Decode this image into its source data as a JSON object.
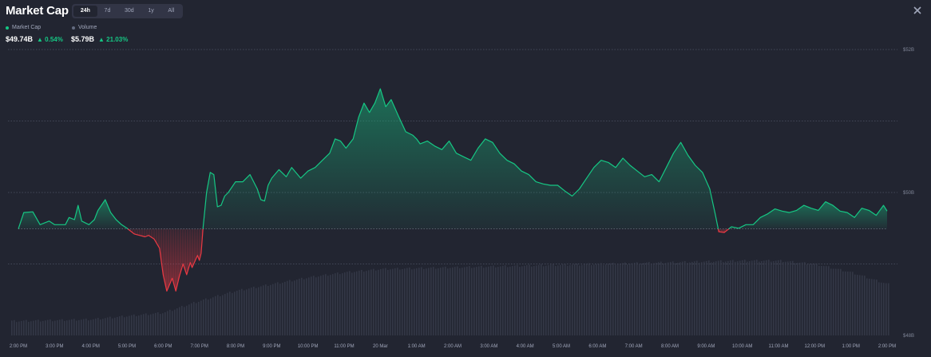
{
  "header": {
    "title": "Market Cap",
    "tabs": [
      {
        "label": "24h",
        "active": true
      },
      {
        "label": "7d",
        "active": false
      },
      {
        "label": "30d",
        "active": false
      },
      {
        "label": "1y",
        "active": false
      },
      {
        "label": "All",
        "active": false
      }
    ],
    "close_icon": "close-icon"
  },
  "legend": {
    "market_cap": {
      "label": "Market Cap",
      "value": "$49.74B",
      "change": "▲ 0.54%",
      "color": "#16c784"
    },
    "volume": {
      "label": "Volume",
      "value": "$5.79B",
      "change": "▲ 21.03%",
      "color": "#646b80"
    }
  },
  "colors": {
    "up": "#16c784",
    "down": "#ea3943",
    "background": "#222531",
    "volume_bar": "#393d4e",
    "grid": "#646b80"
  },
  "chart_data": {
    "type": "area",
    "baseline": 49.49,
    "ylim": [
      48,
      52
    ],
    "yticks": [
      52,
      50,
      48
    ],
    "ytick_labels": [
      "$52B",
      "$50B",
      "$48B"
    ],
    "grid": true,
    "xtick_labels": [
      "2:00 PM",
      "3:00 PM",
      "4:00 PM",
      "5:00 PM",
      "6:00 PM",
      "7:00 PM",
      "8:00 PM",
      "9:00 PM",
      "10:00 PM",
      "11:00 PM",
      "20 Mar",
      "1:00 AM",
      "2:00 AM",
      "3:00 AM",
      "4:00 AM",
      "5:00 AM",
      "6:00 AM",
      "7:00 AM",
      "8:00 AM",
      "9:00 AM",
      "10:00 AM",
      "11:00 AM",
      "12:00 PM",
      "1:00 PM",
      "2:00 PM"
    ],
    "x_range": [
      0,
      24
    ],
    "series": [
      {
        "kind": "market_cap",
        "points": [
          [
            0.0,
            49.49
          ],
          [
            0.15,
            49.72
          ],
          [
            0.4,
            49.73
          ],
          [
            0.6,
            49.55
          ],
          [
            0.85,
            49.6
          ],
          [
            1.0,
            49.55
          ],
          [
            1.3,
            49.55
          ],
          [
            1.4,
            49.65
          ],
          [
            1.55,
            49.62
          ],
          [
            1.65,
            49.82
          ],
          [
            1.75,
            49.6
          ],
          [
            1.95,
            49.55
          ],
          [
            2.1,
            49.62
          ],
          [
            2.2,
            49.75
          ],
          [
            2.4,
            49.9
          ],
          [
            2.55,
            49.72
          ],
          [
            2.7,
            49.62
          ],
          [
            2.85,
            49.55
          ],
          [
            3.0,
            49.5
          ],
          [
            3.2,
            49.42
          ],
          [
            3.5,
            49.38
          ],
          [
            3.6,
            49.4
          ],
          [
            3.75,
            49.35
          ],
          [
            3.9,
            49.22
          ],
          [
            4.0,
            48.85
          ],
          [
            4.1,
            48.62
          ],
          [
            4.25,
            48.8
          ],
          [
            4.35,
            48.62
          ],
          [
            4.45,
            48.83
          ],
          [
            4.55,
            49.0
          ],
          [
            4.65,
            48.85
          ],
          [
            4.75,
            49.02
          ],
          [
            4.8,
            48.95
          ],
          [
            4.95,
            49.12
          ],
          [
            5.0,
            49.05
          ],
          [
            5.05,
            49.15
          ],
          [
            5.1,
            49.49
          ],
          [
            5.2,
            50.0
          ],
          [
            5.3,
            50.28
          ],
          [
            5.4,
            50.25
          ],
          [
            5.5,
            49.8
          ],
          [
            5.6,
            49.82
          ],
          [
            5.7,
            49.95
          ],
          [
            5.8,
            50.0
          ],
          [
            6.0,
            50.15
          ],
          [
            6.2,
            50.15
          ],
          [
            6.4,
            50.25
          ],
          [
            6.6,
            50.05
          ],
          [
            6.7,
            49.9
          ],
          [
            6.8,
            49.88
          ],
          [
            6.9,
            50.1
          ],
          [
            7.0,
            50.2
          ],
          [
            7.2,
            50.32
          ],
          [
            7.4,
            50.22
          ],
          [
            7.55,
            50.35
          ],
          [
            7.8,
            50.2
          ],
          [
            8.0,
            50.3
          ],
          [
            8.2,
            50.35
          ],
          [
            8.4,
            50.45
          ],
          [
            8.6,
            50.55
          ],
          [
            8.75,
            50.75
          ],
          [
            8.9,
            50.72
          ],
          [
            9.05,
            50.62
          ],
          [
            9.25,
            50.75
          ],
          [
            9.4,
            51.05
          ],
          [
            9.55,
            51.25
          ],
          [
            9.7,
            51.12
          ],
          [
            9.85,
            51.25
          ],
          [
            10.0,
            51.45
          ],
          [
            10.15,
            51.2
          ],
          [
            10.3,
            51.3
          ],
          [
            10.5,
            51.07
          ],
          [
            10.7,
            50.85
          ],
          [
            10.9,
            50.8
          ],
          [
            11.0,
            50.75
          ],
          [
            11.1,
            50.68
          ],
          [
            11.3,
            50.72
          ],
          [
            11.5,
            50.65
          ],
          [
            11.7,
            50.6
          ],
          [
            11.9,
            50.72
          ],
          [
            12.1,
            50.55
          ],
          [
            12.3,
            50.5
          ],
          [
            12.5,
            50.45
          ],
          [
            12.7,
            50.62
          ],
          [
            12.9,
            50.75
          ],
          [
            13.1,
            50.7
          ],
          [
            13.3,
            50.55
          ],
          [
            13.5,
            50.45
          ],
          [
            13.7,
            50.4
          ],
          [
            13.9,
            50.3
          ],
          [
            14.1,
            50.25
          ],
          [
            14.3,
            50.15
          ],
          [
            14.5,
            50.12
          ],
          [
            14.7,
            50.1
          ],
          [
            14.9,
            50.1
          ],
          [
            15.1,
            50.02
          ],
          [
            15.3,
            49.95
          ],
          [
            15.5,
            50.05
          ],
          [
            15.7,
            50.2
          ],
          [
            15.9,
            50.35
          ],
          [
            16.1,
            50.45
          ],
          [
            16.3,
            50.42
          ],
          [
            16.5,
            50.35
          ],
          [
            16.7,
            50.48
          ],
          [
            16.9,
            50.38
          ],
          [
            17.1,
            50.3
          ],
          [
            17.3,
            50.22
          ],
          [
            17.5,
            50.25
          ],
          [
            17.7,
            50.15
          ],
          [
            17.9,
            50.35
          ],
          [
            18.1,
            50.55
          ],
          [
            18.3,
            50.7
          ],
          [
            18.5,
            50.52
          ],
          [
            18.7,
            50.38
          ],
          [
            18.9,
            50.28
          ],
          [
            19.1,
            50.05
          ],
          [
            19.25,
            49.7
          ],
          [
            19.35,
            49.45
          ],
          [
            19.5,
            49.44
          ],
          [
            19.7,
            49.52
          ],
          [
            19.9,
            49.5
          ],
          [
            20.1,
            49.55
          ],
          [
            20.3,
            49.55
          ],
          [
            20.5,
            49.65
          ],
          [
            20.7,
            49.7
          ],
          [
            20.9,
            49.77
          ],
          [
            21.1,
            49.74
          ],
          [
            21.3,
            49.72
          ],
          [
            21.5,
            49.75
          ],
          [
            21.7,
            49.82
          ],
          [
            21.9,
            49.78
          ],
          [
            22.1,
            49.75
          ],
          [
            22.3,
            49.87
          ],
          [
            22.5,
            49.82
          ],
          [
            22.7,
            49.74
          ],
          [
            22.9,
            49.72
          ],
          [
            23.1,
            49.65
          ],
          [
            23.3,
            49.78
          ],
          [
            23.5,
            49.75
          ],
          [
            23.7,
            49.68
          ],
          [
            23.9,
            49.82
          ],
          [
            24.0,
            49.74
          ]
        ]
      },
      {
        "kind": "volume",
        "points": [
          [
            0,
            0.08
          ],
          [
            2,
            0.09
          ],
          [
            4,
            0.13
          ],
          [
            5,
            0.2
          ],
          [
            6,
            0.26
          ],
          [
            7,
            0.3
          ],
          [
            8,
            0.34
          ],
          [
            9,
            0.37
          ],
          [
            10,
            0.39
          ],
          [
            12,
            0.4
          ],
          [
            14,
            0.41
          ],
          [
            16,
            0.42
          ],
          [
            18,
            0.43
          ],
          [
            20,
            0.44
          ],
          [
            21,
            0.44
          ],
          [
            22,
            0.42
          ],
          [
            23,
            0.37
          ],
          [
            24,
            0.3
          ]
        ]
      }
    ]
  }
}
